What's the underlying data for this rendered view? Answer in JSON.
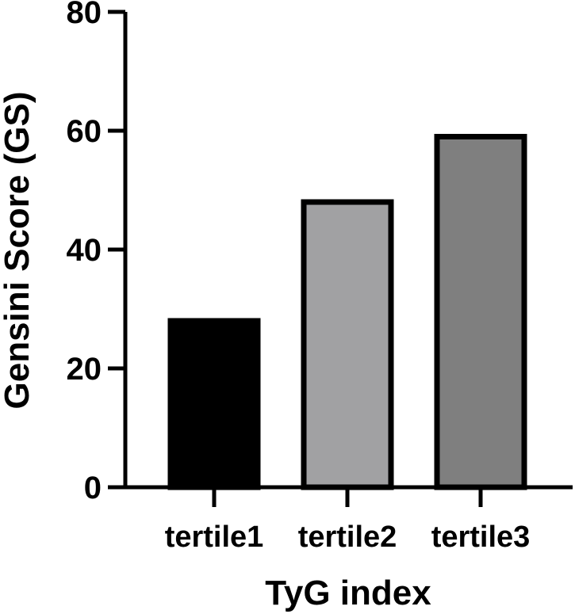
{
  "chart_data": {
    "type": "bar",
    "categories": [
      "tertile1",
      "tertile2",
      "tertile3"
    ],
    "values": [
      28,
      48,
      59
    ],
    "colors": [
      "#000000",
      "#a1a1a3",
      "#7f7f7f"
    ],
    "outline_color": "#000000",
    "title": "",
    "xlabel": "TyG index",
    "ylabel": "Gensini Score (GS)",
    "ylim": [
      0,
      80
    ],
    "yticks": [
      "0",
      "20",
      "40",
      "60",
      "80"
    ],
    "grid": false,
    "legend": false
  }
}
